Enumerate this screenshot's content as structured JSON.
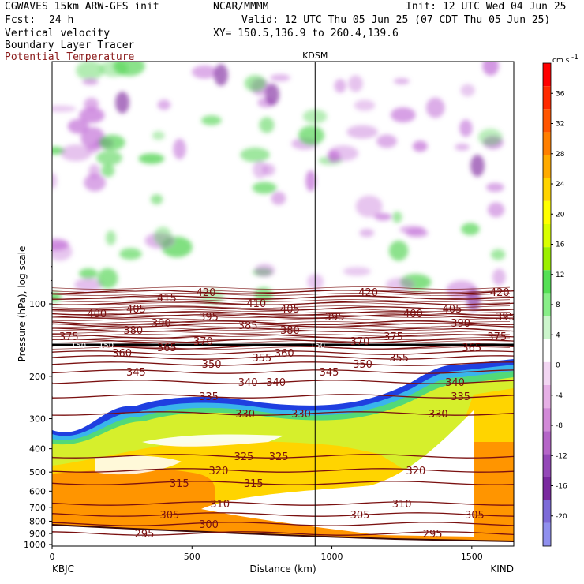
{
  "header": {
    "model_line": "CGWAVES 15km ARW-GFS init",
    "fcst_label": "Fcst:",
    "fcst_value": "24 h",
    "org": "NCAR/MMMM",
    "init": "Init: 12 UTC Wed 04 Jun 25",
    "valid": "Valid: 12 UTC Thu 05 Jun 25 (07 CDT Thu 05 Jun 25)",
    "xy": "XY= 150.5,136.9 to 260.4,139.6",
    "field1": "Vertical velocity",
    "field2": "Boundary Layer Tracer",
    "field3": "Potential Temperature"
  },
  "colors": {
    "theta": "#7a1010",
    "updraft": "#3fcf3f",
    "downdraft": "#c06ad6",
    "tracer_high": "#ff8c00"
  },
  "chart_data": {
    "type": "heatmap",
    "xlabel": "Distance (km)",
    "ylabel": "Pressure (hPa), log scale",
    "x_ticks": [
      0,
      500,
      1000,
      1500
    ],
    "xlim": [
      0,
      1650
    ],
    "y_ticks": [
      100,
      200,
      300,
      400,
      500,
      600,
      700,
      800,
      900,
      1000
    ],
    "y_scale": "log",
    "start_station": "KBJC",
    "end_station": "KIND",
    "mid_station": "KDSM",
    "mid_station_km": 940,
    "colorbar": {
      "unit_prefix": "cm s",
      "unit_exp": "-1",
      "labels": [
        36,
        32,
        28,
        24,
        20,
        16,
        12,
        8,
        4,
        0,
        -4,
        -8,
        -12,
        -16,
        -20
      ],
      "colors": [
        "#ff0000",
        "#ff2a00",
        "#ff5500",
        "#ff7f00",
        "#ffaa00",
        "#ffd400",
        "#ffff00",
        "#d9ff00",
        "#9cf000",
        "#55e055",
        "#88ee88",
        "#ccf5cc",
        "#ffffff",
        "#f2d6f2",
        "#e6b0e6",
        "#d28ad8",
        "#b565c8",
        "#9448b8",
        "#7a2aa0",
        "#7d6bd8",
        "#9090ee"
      ]
    },
    "theta_contours": [
      {
        "label": "295",
        "positions_km": [
          330,
          1360
        ]
      },
      {
        "label": "300",
        "positions_km": [
          560
        ]
      },
      {
        "label": "305",
        "positions_km": [
          420,
          1100,
          1510
        ]
      },
      {
        "label": "310",
        "positions_km": [
          600,
          1250
        ]
      },
      {
        "label": "315",
        "positions_km": [
          455,
          720
        ]
      },
      {
        "label": "320",
        "positions_km": [
          595,
          1300
        ]
      },
      {
        "label": "325",
        "positions_km": [
          685,
          810
        ]
      },
      {
        "label": "330",
        "positions_km": [
          690,
          890,
          1380
        ]
      },
      {
        "label": "335",
        "positions_km": [
          560,
          1460
        ]
      },
      {
        "label": "340",
        "positions_km": [
          700,
          800,
          1440
        ]
      },
      {
        "label": "345",
        "positions_km": [
          300,
          990
        ]
      },
      {
        "label": "350",
        "positions_km": [
          570,
          1110
        ]
      },
      {
        "label": "355",
        "positions_km": [
          750,
          1240
        ]
      },
      {
        "label": "360",
        "positions_km": [
          250,
          830
        ]
      },
      {
        "label": "365",
        "positions_km": [
          410,
          1500
        ]
      },
      {
        "label": "370",
        "positions_km": [
          540,
          1100
        ]
      },
      {
        "label": "375",
        "positions_km": [
          60,
          1220,
          1590
        ]
      },
      {
        "label": "380",
        "positions_km": [
          290,
          850
        ]
      },
      {
        "label": "385",
        "positions_km": [
          700
        ]
      },
      {
        "label": "390",
        "positions_km": [
          390,
          1460
        ]
      },
      {
        "label": "395",
        "positions_km": [
          560,
          1010,
          1620
        ]
      },
      {
        "label": "400",
        "positions_km": [
          160,
          1290
        ]
      },
      {
        "label": "405",
        "positions_km": [
          300,
          850,
          1430
        ]
      },
      {
        "label": "410",
        "positions_km": [
          730
        ]
      },
      {
        "label": "415",
        "positions_km": [
          410
        ]
      },
      {
        "label": "420",
        "positions_km": [
          550,
          1130,
          1600
        ]
      }
    ],
    "tropopause_labels": [
      "150",
      "150",
      "150"
    ]
  }
}
